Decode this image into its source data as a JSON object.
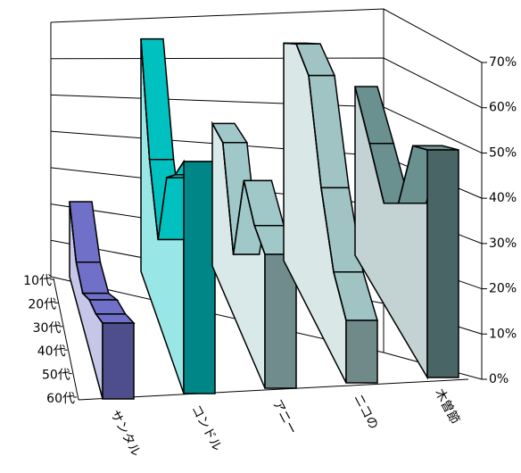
{
  "chart_data": {
    "type": "line-3d",
    "categories": [
      "10代",
      "20代",
      "30代",
      "40代",
      "50代",
      "60代"
    ],
    "series": [
      {
        "name": "サンタル",
        "color": "#7070c8",
        "values": [
          20,
          10,
          8,
          12,
          14,
          17
        ]
      },
      {
        "name": "コンドル",
        "color": "#00c0c0",
        "values": [
          62,
          35,
          20,
          40,
          45,
          52
        ]
      },
      {
        "name": "アニー",
        "color": "#a0c8c8",
        "values": [
          38,
          38,
          15,
          38,
          32,
          30
        ]
      },
      {
        "name": "ニコの",
        "color": "#a0c4c4",
        "values": [
          58,
          62,
          58,
          35,
          20,
          14
        ]
      },
      {
        "name": "木曽節",
        "color": "#6a9090",
        "values": [
          45,
          35,
          25,
          30,
          48,
          51
        ]
      }
    ],
    "ylim": [
      0,
      70
    ],
    "yticks": [
      {
        "value": 0,
        "label": "0%"
      },
      {
        "value": 10,
        "label": "10%"
      },
      {
        "value": 20,
        "label": "20%"
      },
      {
        "value": 30,
        "label": "30%"
      },
      {
        "value": 40,
        "label": "40%"
      },
      {
        "value": 50,
        "label": "50%"
      },
      {
        "value": 60,
        "label": "60%"
      },
      {
        "value": 70,
        "label": "70%"
      }
    ]
  }
}
